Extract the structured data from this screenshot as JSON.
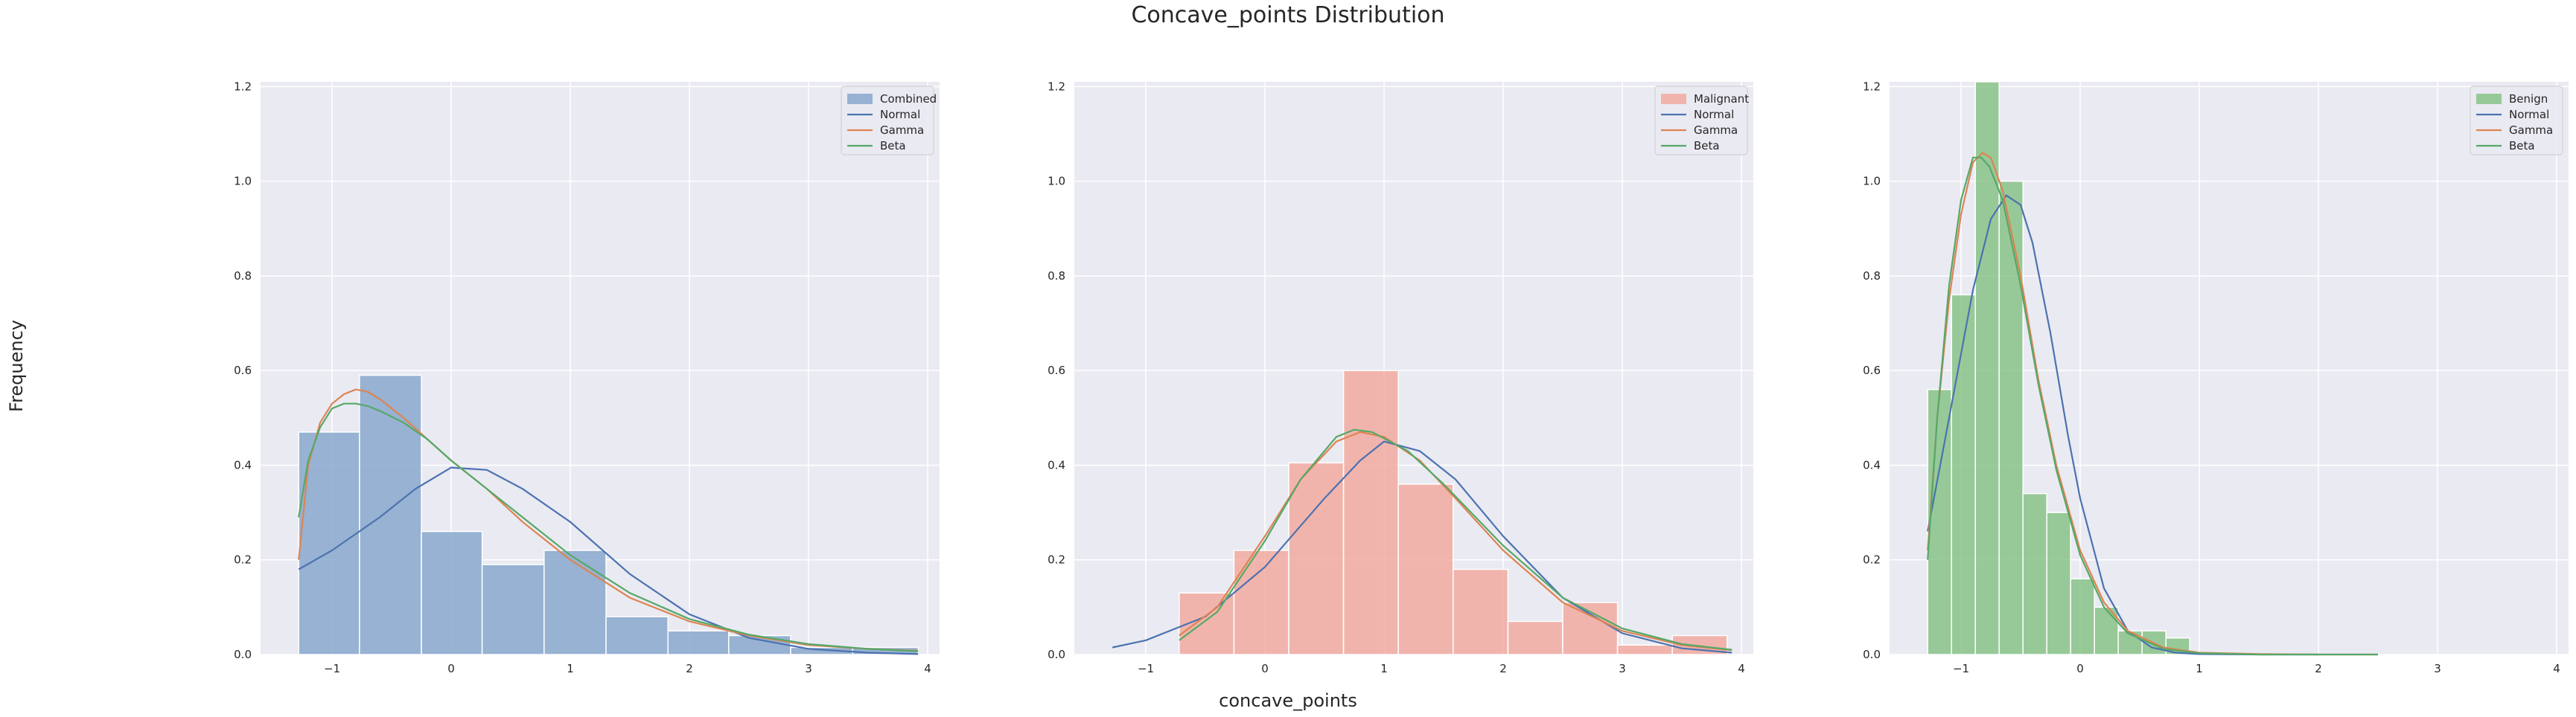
{
  "figure": {
    "title": "Concave_points Distribution",
    "xlabel": "concave_points",
    "ylabel": "Frequency"
  },
  "chart_data": [
    {
      "type": "bar",
      "xlim": [
        -1.6,
        4.1
      ],
      "ylim": [
        0,
        1.21
      ],
      "xticks": [
        -1,
        0,
        1,
        2,
        3,
        4
      ],
      "yticks": [
        0.0,
        0.2,
        0.4,
        0.6,
        0.8,
        1.0,
        1.2
      ],
      "grid": true,
      "legend_position": "top-right",
      "histogram": {
        "name": "Combined",
        "color": "#7fa1c9",
        "bin_edges": [
          -1.28,
          -0.77,
          -0.25,
          0.26,
          0.78,
          1.3,
          1.82,
          2.33,
          2.85,
          3.37,
          3.92
        ],
        "values": [
          0.47,
          0.59,
          0.26,
          0.19,
          0.22,
          0.08,
          0.05,
          0.04,
          0.015,
          0.015
        ]
      },
      "series": [
        {
          "name": "Normal",
          "color": "#4c72b0",
          "x": [
            -1.28,
            -1.0,
            -0.6,
            -0.3,
            0.0,
            0.3,
            0.6,
            1.0,
            1.5,
            2.0,
            2.5,
            3.0,
            3.5,
            3.92
          ],
          "y": [
            0.18,
            0.22,
            0.29,
            0.35,
            0.395,
            0.39,
            0.35,
            0.28,
            0.17,
            0.085,
            0.035,
            0.012,
            0.004,
            0.001
          ]
        },
        {
          "name": "Gamma",
          "color": "#dd8452",
          "x": [
            -1.28,
            -1.2,
            -1.1,
            -1.0,
            -0.9,
            -0.8,
            -0.7,
            -0.6,
            -0.4,
            -0.2,
            0.0,
            0.3,
            0.6,
            1.0,
            1.5,
            2.0,
            2.5,
            3.0,
            3.5,
            3.92
          ],
          "y": [
            0.2,
            0.4,
            0.49,
            0.53,
            0.55,
            0.56,
            0.555,
            0.54,
            0.5,
            0.455,
            0.41,
            0.35,
            0.28,
            0.2,
            0.12,
            0.07,
            0.04,
            0.02,
            0.012,
            0.008
          ]
        },
        {
          "name": "Beta",
          "color": "#55a868",
          "x": [
            -1.28,
            -1.2,
            -1.1,
            -1.0,
            -0.9,
            -0.8,
            -0.7,
            -0.6,
            -0.4,
            -0.2,
            0.0,
            0.3,
            0.6,
            1.0,
            1.5,
            2.0,
            2.5,
            3.0,
            3.5,
            3.92
          ],
          "y": [
            0.29,
            0.41,
            0.48,
            0.52,
            0.53,
            0.53,
            0.525,
            0.515,
            0.49,
            0.455,
            0.41,
            0.35,
            0.29,
            0.21,
            0.13,
            0.075,
            0.042,
            0.022,
            0.012,
            0.007
          ]
        }
      ]
    },
    {
      "type": "bar",
      "xlim": [
        -1.6,
        4.1
      ],
      "ylim": [
        0,
        1.21
      ],
      "xticks": [
        -1,
        0,
        1,
        2,
        3,
        4
      ],
      "yticks": [
        0.0,
        0.2,
        0.4,
        0.6,
        0.8,
        1.0,
        1.2
      ],
      "grid": true,
      "legend_position": "top-right",
      "histogram": {
        "name": "Malignant",
        "color": "#f2a49a",
        "bin_edges": [
          -0.72,
          -0.26,
          0.2,
          0.66,
          1.12,
          1.58,
          2.04,
          2.5,
          2.96,
          3.42,
          3.88
        ],
        "values": [
          0.13,
          0.22,
          0.405,
          0.6,
          0.36,
          0.18,
          0.07,
          0.11,
          0.02,
          0.04
        ]
      },
      "series": [
        {
          "name": "Normal",
          "color": "#4c72b0",
          "x": [
            -1.28,
            -1.0,
            -0.5,
            0.0,
            0.5,
            0.8,
            1.0,
            1.3,
            1.6,
            2.0,
            2.5,
            3.0,
            3.5,
            3.92
          ],
          "y": [
            0.015,
            0.03,
            0.08,
            0.185,
            0.33,
            0.41,
            0.45,
            0.43,
            0.37,
            0.25,
            0.12,
            0.045,
            0.013,
            0.004
          ]
        },
        {
          "name": "Gamma",
          "color": "#dd8452",
          "x": [
            -0.72,
            -0.4,
            0.0,
            0.3,
            0.6,
            0.8,
            1.0,
            1.3,
            1.6,
            2.0,
            2.5,
            3.0,
            3.5,
            3.92
          ],
          "y": [
            0.04,
            0.1,
            0.25,
            0.37,
            0.45,
            0.47,
            0.46,
            0.41,
            0.33,
            0.22,
            0.11,
            0.05,
            0.02,
            0.009
          ]
        },
        {
          "name": "Beta",
          "color": "#55a868",
          "x": [
            -0.72,
            -0.4,
            0.0,
            0.3,
            0.6,
            0.75,
            0.9,
            1.2,
            1.5,
            2.0,
            2.5,
            3.0,
            3.5,
            3.92
          ],
          "y": [
            0.03,
            0.09,
            0.24,
            0.37,
            0.46,
            0.475,
            0.47,
            0.43,
            0.36,
            0.23,
            0.12,
            0.055,
            0.022,
            0.01
          ]
        }
      ]
    },
    {
      "type": "bar",
      "xlim": [
        -1.6,
        4.1
      ],
      "ylim": [
        0,
        1.21
      ],
      "xticks": [
        -1,
        0,
        1,
        2,
        3,
        4
      ],
      "yticks": [
        0.0,
        0.2,
        0.4,
        0.6,
        0.8,
        1.0,
        1.2
      ],
      "grid": true,
      "legend_position": "top-right",
      "histogram": {
        "name": "Benign",
        "color": "#7fbf7f",
        "bin_edges": [
          -1.28,
          -1.08,
          -0.88,
          -0.68,
          -0.48,
          -0.28,
          -0.08,
          0.12,
          0.32,
          0.52,
          0.72,
          0.92
        ],
        "values": [
          0.56,
          0.76,
          1.21,
          1.0,
          0.34,
          0.3,
          0.16,
          0.1,
          0.05,
          0.05,
          0.035
        ]
      },
      "series": [
        {
          "name": "Normal",
          "color": "#4c72b0",
          "x": [
            -1.28,
            -1.1,
            -0.9,
            -0.75,
            -0.62,
            -0.5,
            -0.4,
            -0.25,
            -0.1,
            0.0,
            0.2,
            0.4,
            0.6,
            0.8,
            1.0,
            1.5,
            2.0
          ],
          "y": [
            0.26,
            0.5,
            0.77,
            0.92,
            0.97,
            0.95,
            0.87,
            0.68,
            0.46,
            0.33,
            0.14,
            0.05,
            0.015,
            0.004,
            0.001,
            0.0,
            0.0
          ]
        },
        {
          "name": "Gamma",
          "color": "#dd8452",
          "x": [
            -1.28,
            -1.2,
            -1.1,
            -1.0,
            -0.9,
            -0.82,
            -0.75,
            -0.65,
            -0.5,
            -0.35,
            -0.2,
            0.0,
            0.2,
            0.4,
            0.7,
            1.0,
            1.5,
            2.0,
            2.5
          ],
          "y": [
            0.22,
            0.5,
            0.75,
            0.93,
            1.04,
            1.06,
            1.05,
            0.98,
            0.8,
            0.58,
            0.4,
            0.22,
            0.11,
            0.05,
            0.015,
            0.004,
            0.001,
            0.0,
            0.0
          ]
        },
        {
          "name": "Beta",
          "color": "#55a868",
          "x": [
            -1.28,
            -1.2,
            -1.1,
            -1.0,
            -0.9,
            -0.83,
            -0.76,
            -0.65,
            -0.5,
            -0.35,
            -0.2,
            0.0,
            0.2,
            0.4,
            0.7,
            1.0,
            1.5,
            2.0,
            2.5
          ],
          "y": [
            0.2,
            0.5,
            0.78,
            0.96,
            1.05,
            1.05,
            1.03,
            0.96,
            0.78,
            0.57,
            0.39,
            0.21,
            0.1,
            0.045,
            0.012,
            0.003,
            0.0,
            0.0,
            0.0
          ]
        }
      ]
    }
  ]
}
